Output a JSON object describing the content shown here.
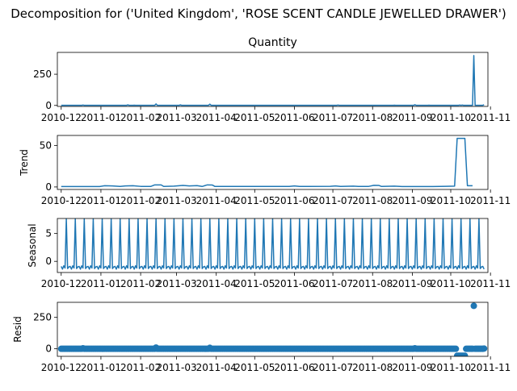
{
  "figure_title": "Decomposition for ('United Kingdom', 'ROSE SCENT CANDLE JEWELLED DRAWER')",
  "chart_data": [
    {
      "type": "line",
      "panel": "observed",
      "title": "Quantity",
      "ylabel": "",
      "ylim": [
        -8,
        425
      ],
      "yticks": [
        0,
        250
      ],
      "xlim": [
        -3,
        333
      ],
      "xticks": [
        0,
        31,
        62,
        90,
        121,
        151,
        182,
        212,
        243,
        274,
        304,
        335
      ],
      "xticklabels": [
        "2010-12",
        "2011-01",
        "2011-02",
        "2011-03",
        "2011-04",
        "2011-05",
        "2011-06",
        "2011-07",
        "2011-08",
        "2011-09",
        "2011-10",
        "2011-11"
      ],
      "x_unit": "days since 2010-12-01",
      "baseline": 1,
      "spikes": [
        [
          17,
          3
        ],
        [
          52,
          4
        ],
        [
          57,
          2
        ],
        [
          74,
          12
        ],
        [
          93,
          4
        ],
        [
          116,
          10
        ],
        [
          216,
          3
        ],
        [
          260,
          2
        ],
        [
          276,
          5
        ],
        [
          287,
          2
        ],
        [
          311,
          3
        ],
        [
          313,
          3
        ],
        [
          322,
          400
        ],
        [
          323,
          1
        ],
        [
          330,
          5
        ]
      ],
      "color": "#1f77b4"
    },
    {
      "type": "line",
      "panel": "trend",
      "title": "",
      "ylabel": "Trend",
      "ylim": [
        -3,
        62
      ],
      "yticks": [
        0,
        50
      ],
      "xlim": [
        -3,
        333
      ],
      "xticks": [
        0,
        31,
        62,
        90,
        121,
        151,
        182,
        212,
        243,
        274,
        304,
        335
      ],
      "xticklabels": [
        "2010-12",
        "2011-01",
        "2011-02",
        "2011-03",
        "2011-04",
        "2011-05",
        "2011-06",
        "2011-07",
        "2011-08",
        "2011-09",
        "2011-10",
        "2011-11"
      ],
      "points": [
        [
          0,
          0.5
        ],
        [
          30,
          0.5
        ],
        [
          34,
          1.5
        ],
        [
          40,
          1.2
        ],
        [
          46,
          0.6
        ],
        [
          50,
          1.2
        ],
        [
          56,
          1.5
        ],
        [
          62,
          0.7
        ],
        [
          70,
          0.7
        ],
        [
          73,
          2.5
        ],
        [
          78,
          2.5
        ],
        [
          80,
          0.6
        ],
        [
          88,
          1.0
        ],
        [
          95,
          1.8
        ],
        [
          100,
          1.2
        ],
        [
          106,
          1.6
        ],
        [
          110,
          0.6
        ],
        [
          114,
          2.5
        ],
        [
          118,
          2.3
        ],
        [
          120,
          0.6
        ],
        [
          178,
          0.6
        ],
        [
          182,
          1.2
        ],
        [
          186,
          0.6
        ],
        [
          210,
          0.8
        ],
        [
          214,
          1.2
        ],
        [
          218,
          0.6
        ],
        [
          228,
          1.0
        ],
        [
          232,
          0.6
        ],
        [
          240,
          0.7
        ],
        [
          244,
          2.0
        ],
        [
          248,
          1.8
        ],
        [
          250,
          0.6
        ],
        [
          260,
          1.0
        ],
        [
          266,
          0.5
        ],
        [
          290,
          0.5
        ],
        [
          300,
          0.8
        ],
        [
          307,
          1.0
        ],
        [
          309,
          58.5
        ],
        [
          315,
          58.5
        ],
        [
          317,
          1.5
        ],
        [
          321,
          1.5
        ]
      ],
      "color": "#1f77b4"
    },
    {
      "type": "line",
      "panel": "seasonal",
      "title": "",
      "ylabel": "Seasonal",
      "ylim": [
        -2,
        7.7
      ],
      "yticks": [
        0,
        5
      ],
      "xlim": [
        -3,
        333
      ],
      "xticks": [
        0,
        31,
        62,
        90,
        121,
        151,
        182,
        212,
        243,
        274,
        304,
        335
      ],
      "xticklabels": [
        "2010-12",
        "2011-01",
        "2011-02",
        "2011-03",
        "2011-04",
        "2011-05",
        "2011-06",
        "2011-07",
        "2011-08",
        "2011-09",
        "2011-10",
        "2011-11"
      ],
      "period": 7,
      "pattern": [
        -0.9,
        -1.4,
        -0.8,
        -1.2,
        7.6,
        -1.3,
        -1.0
      ],
      "color": "#1f77b4"
    },
    {
      "type": "scatter",
      "panel": "resid",
      "title": "",
      "ylabel": "Resid",
      "ylim": [
        -60,
        370
      ],
      "yticks": [
        0,
        250
      ],
      "xlim": [
        -3,
        333
      ],
      "xticks": [
        0,
        31,
        62,
        90,
        121,
        151,
        182,
        212,
        243,
        274,
        304,
        335
      ],
      "xticklabels": [
        "2010-12",
        "2011-01",
        "2011-02",
        "2011-03",
        "2011-04",
        "2011-05",
        "2011-06",
        "2011-07",
        "2011-08",
        "2011-09",
        "2011-10",
        "2011-11"
      ],
      "baseline": 0,
      "outliers": [
        [
          17,
          4
        ],
        [
          74,
          10
        ],
        [
          116,
          8
        ],
        [
          276,
          4
        ],
        [
          309,
          -55
        ],
        [
          310,
          -55
        ],
        [
          311,
          -55
        ],
        [
          312,
          -55
        ],
        [
          313,
          -55
        ],
        [
          314,
          -55
        ],
        [
          315,
          -55
        ],
        [
          322,
          342
        ],
        [
          326,
          0
        ],
        [
          330,
          2
        ]
      ],
      "color": "#1f77b4"
    }
  ]
}
